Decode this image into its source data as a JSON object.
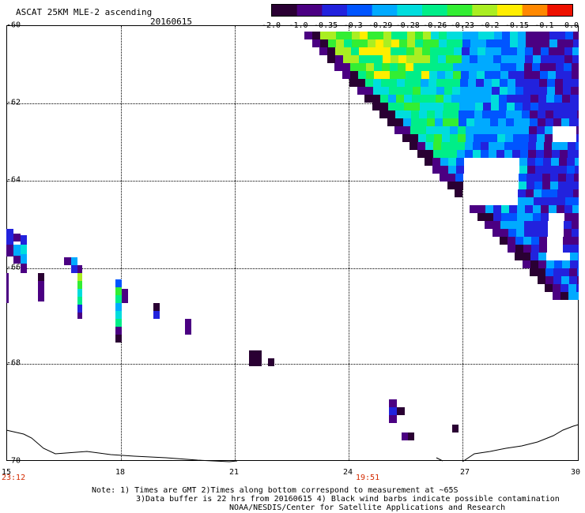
{
  "header": {
    "title": "ASCAT 25KM MLE-2 ascending",
    "date": "20160615"
  },
  "colorbar": {
    "labels": [
      "-2.0",
      "-1.0",
      "-0.35",
      "-0.3",
      "-0.29",
      "-0.28",
      "-0.26",
      "-0.23",
      "-0.2",
      "-0.15",
      "-0.1",
      "0.0"
    ],
    "colors": [
      "#2a0033",
      "#4b0082",
      "#2222dd",
      "#0055ff",
      "#00aaff",
      "#00dddd",
      "#00ee88",
      "#33ee33",
      "#aaee22",
      "#ffee00",
      "#ff8800",
      "#ee1100"
    ]
  },
  "axes": {
    "y_ticks": [
      "-60",
      "-62",
      "-64",
      "-66",
      "-68",
      "-70"
    ],
    "x_ticks": [
      "15",
      "18",
      "21",
      "24",
      "27",
      "30"
    ],
    "time_labels": [
      {
        "text": "23:12",
        "near": "15"
      },
      {
        "text": "19:51",
        "near": "24"
      }
    ]
  },
  "notes": {
    "line1": "Note: 1) Times are GMT 2)Times along bottom correspond to measurement at ~65S",
    "line2": "3)Data buffer is 22 hrs from 20160615 4) Black wind barbs indicate possible contamination",
    "line3": "NOAA/NESDIS/Center for Satellite Applications and Research"
  }
}
